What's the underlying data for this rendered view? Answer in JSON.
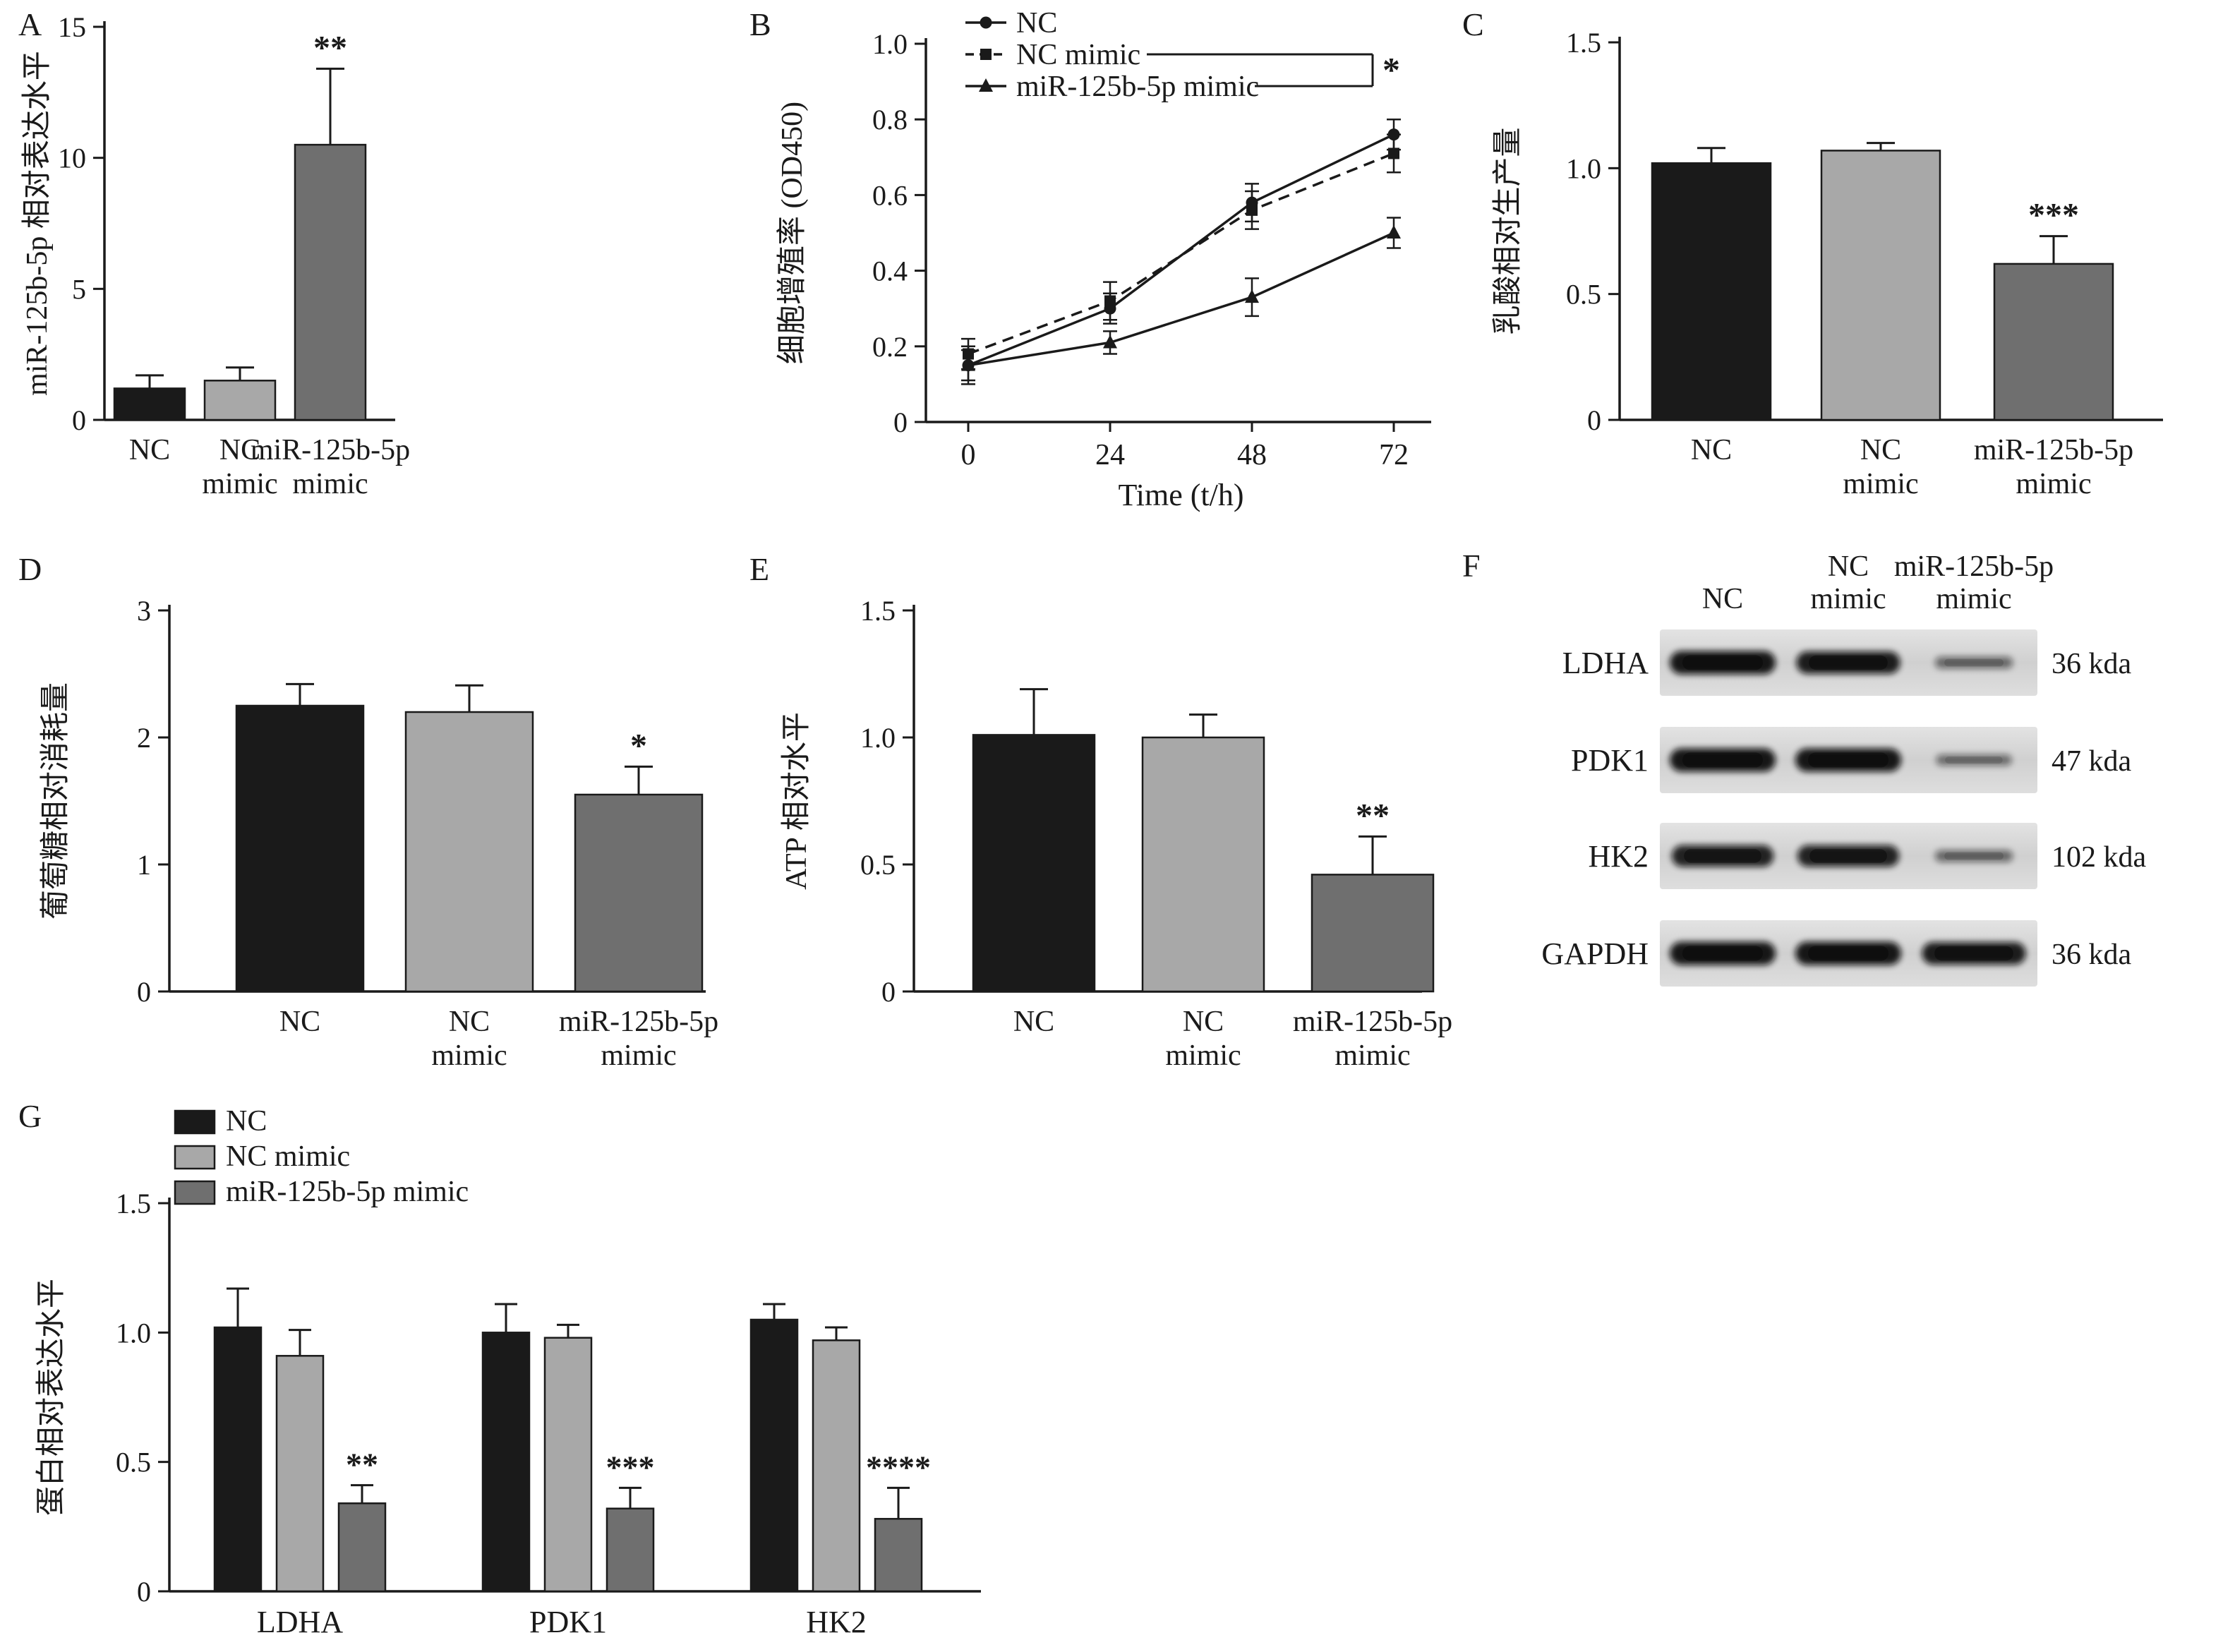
{
  "panels": {
    "A": {
      "letter": "A"
    },
    "B": {
      "letter": "B"
    },
    "C": {
      "letter": "C"
    },
    "D": {
      "letter": "D"
    },
    "E": {
      "letter": "E"
    },
    "F": {
      "letter": "F"
    },
    "G": {
      "letter": "G"
    }
  },
  "colors": {
    "nc": "#1a1a1a",
    "nc_mimic": "#a8a8a8",
    "mir_mimic": "#6f6f6f",
    "axis": "#1a1a1a",
    "blot_strip": "#d5d5d5"
  },
  "chart_data": [
    {
      "id": "A",
      "type": "bar",
      "ylabel": "miR-125b-5p 相对表达水平",
      "ylim": [
        0,
        15
      ],
      "yticks": [
        0,
        5,
        10,
        15
      ],
      "ytick_labels": [
        "0",
        "5",
        "10",
        "15"
      ],
      "categories": [
        [
          "NC"
        ],
        [
          "NC",
          "mimic"
        ],
        [
          "miR-125b-5p",
          "mimic"
        ]
      ],
      "values": [
        1.2,
        1.5,
        10.5
      ],
      "errors": [
        0.5,
        0.5,
        2.9
      ],
      "bar_colors": [
        "#1a1a1a",
        "#a8a8a8",
        "#6f6f6f"
      ],
      "sig": [
        "",
        "",
        "**"
      ],
      "grid": false
    },
    {
      "id": "B",
      "type": "line",
      "ylabel": "细胞增殖率 (OD450)",
      "xlabel": "Time (t/h)",
      "ylim": [
        0,
        1.0
      ],
      "yticks": [
        0,
        0.2,
        0.4,
        0.6,
        0.8,
        1.0
      ],
      "ytick_labels": [
        "0",
        "0.2",
        "0.4",
        "0.6",
        "0.8",
        "1.0"
      ],
      "x": [
        0,
        24,
        48,
        72
      ],
      "xtick_labels": [
        "0",
        "24",
        "48",
        "72"
      ],
      "series": [
        {
          "name": "NC",
          "marker": "circle",
          "dash": false,
          "values": [
            0.15,
            0.3,
            0.58,
            0.76
          ],
          "errors": [
            0.05,
            0.04,
            0.05,
            0.04
          ]
        },
        {
          "name": "NC mimic",
          "marker": "square",
          "dash": true,
          "values": [
            0.18,
            0.32,
            0.56,
            0.71
          ],
          "errors": [
            0.04,
            0.05,
            0.05,
            0.05
          ]
        },
        {
          "name": "miR-125b-5p mimic",
          "marker": "triangle",
          "dash": false,
          "values": [
            0.15,
            0.21,
            0.33,
            0.5
          ],
          "errors": [
            0.04,
            0.03,
            0.05,
            0.04
          ]
        }
      ],
      "sig": "*",
      "legend_position": "top-left",
      "grid": false
    },
    {
      "id": "C",
      "type": "bar",
      "ylabel": "乳酸相对生产量",
      "ylim": [
        0,
        1.5
      ],
      "yticks": [
        0,
        0.5,
        1.0,
        1.5
      ],
      "ytick_labels": [
        "0",
        "0.5",
        "1.0",
        "1.5"
      ],
      "categories": [
        [
          "NC"
        ],
        [
          "NC",
          "mimic"
        ],
        [
          "miR-125b-5p",
          "mimic"
        ]
      ],
      "values": [
        1.02,
        1.07,
        0.62
      ],
      "errors": [
        0.06,
        0.03,
        0.11
      ],
      "bar_colors": [
        "#1a1a1a",
        "#a8a8a8",
        "#6f6f6f"
      ],
      "sig": [
        "",
        "",
        "***"
      ],
      "grid": false
    },
    {
      "id": "D",
      "type": "bar",
      "ylabel": "葡萄糖相对消耗量",
      "ylim": [
        0,
        3
      ],
      "yticks": [
        0,
        1,
        2,
        3
      ],
      "ytick_labels": [
        "0",
        "1",
        "2",
        "3"
      ],
      "categories": [
        [
          "NC"
        ],
        [
          "NC",
          "mimic"
        ],
        [
          "miR-125b-5p",
          "mimic"
        ]
      ],
      "values": [
        2.25,
        2.2,
        1.55
      ],
      "errors": [
        0.17,
        0.21,
        0.22
      ],
      "bar_colors": [
        "#1a1a1a",
        "#a8a8a8",
        "#6f6f6f"
      ],
      "sig": [
        "",
        "",
        "*"
      ],
      "grid": false
    },
    {
      "id": "E",
      "type": "bar",
      "ylabel": "ATP 相对水平",
      "ylim": [
        0,
        1.5
      ],
      "yticks": [
        0,
        0.5,
        1.0,
        1.5
      ],
      "ytick_labels": [
        "0",
        "0.5",
        "1.0",
        "1.5"
      ],
      "categories": [
        [
          "NC"
        ],
        [
          "NC",
          "mimic"
        ],
        [
          "miR-125b-5p",
          "mimic"
        ]
      ],
      "values": [
        1.01,
        1.0,
        0.46
      ],
      "errors": [
        0.18,
        0.09,
        0.15
      ],
      "bar_colors": [
        "#1a1a1a",
        "#a8a8a8",
        "#6f6f6f"
      ],
      "sig": [
        "",
        "",
        "**"
      ],
      "grid": false
    },
    {
      "id": "G",
      "type": "grouped_bar",
      "ylabel": "蛋白相对表达水平",
      "ylim": [
        0,
        1.5
      ],
      "yticks": [
        0,
        0.5,
        1.0,
        1.5
      ],
      "ytick_labels": [
        "0",
        "0.5",
        "1.0",
        "1.5"
      ],
      "categories": [
        "LDHA",
        "PDK1",
        "HK2"
      ],
      "series": [
        {
          "name": "NC",
          "color": "#1a1a1a",
          "values": [
            1.02,
            1.0,
            1.05
          ],
          "errors": [
            0.15,
            0.11,
            0.06
          ],
          "sigs": [
            "",
            "",
            ""
          ]
        },
        {
          "name": "NC mimic",
          "color": "#a8a8a8",
          "values": [
            0.91,
            0.98,
            0.97
          ],
          "errors": [
            0.1,
            0.05,
            0.05
          ],
          "sigs": [
            "",
            "",
            ""
          ]
        },
        {
          "name": "miR-125b-5p mimic",
          "color": "#6f6f6f",
          "values": [
            0.34,
            0.32,
            0.28
          ],
          "errors": [
            0.07,
            0.08,
            0.12
          ],
          "sigs": [
            "**",
            "***",
            "****"
          ]
        }
      ],
      "legend_position": "top-left",
      "grid": false
    }
  ],
  "blot": {
    "id": "F",
    "col_headers_line1": [
      "",
      "NC",
      "miR-125b-5p"
    ],
    "col_headers_line2": [
      "NC",
      "mimic",
      "mimic"
    ],
    "rows": [
      {
        "label": "LDHA",
        "size": "36 kda",
        "bands": [
          1,
          0.95,
          0.3
        ]
      },
      {
        "label": "PDK1",
        "size": "47 kda",
        "bands": [
          1,
          1,
          0.25
        ]
      },
      {
        "label": "HK2",
        "size": "102 kda",
        "bands": [
          0.9,
          0.9,
          0.3
        ]
      },
      {
        "label": "GAPDH",
        "size": "36 kda",
        "bands": [
          1,
          1,
          0.95
        ]
      }
    ]
  }
}
